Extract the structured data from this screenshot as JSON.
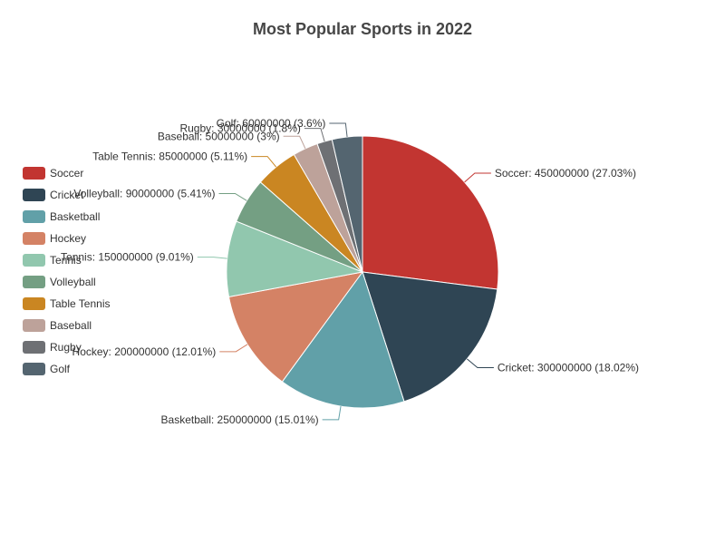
{
  "chart_data": {
    "type": "pie",
    "title": "Most Popular Sports in 2022",
    "slices": [
      {
        "name": "Soccer",
        "value": 450000000,
        "percent": "27.03%",
        "color": "#c23531"
      },
      {
        "name": "Cricket",
        "value": 300000000,
        "percent": "18.02%",
        "color": "#2f4554"
      },
      {
        "name": "Basketball",
        "value": 250000000,
        "percent": "15.01%",
        "color": "#61a0a8"
      },
      {
        "name": "Hockey",
        "value": 200000000,
        "percent": "12.01%",
        "color": "#d48265"
      },
      {
        "name": "Tennis",
        "value": 150000000,
        "percent": "9.01%",
        "color": "#91c7ae"
      },
      {
        "name": "Volleyball",
        "value": 90000000,
        "percent": "5.41%",
        "color": "#749f83"
      },
      {
        "name": "Table Tennis",
        "value": 85000000,
        "percent": "5.11%",
        "color": "#ca8622"
      },
      {
        "name": "Baseball",
        "value": 50000000,
        "percent": "3%",
        "color": "#bda29a"
      },
      {
        "name": "Rugby",
        "value": 30000000,
        "percent": "1.8%",
        "color": "#6e7074"
      },
      {
        "name": "Golf",
        "value": 60000000,
        "percent": "3.6%",
        "color": "#546570"
      }
    ],
    "legend_position": "left",
    "start_angle_deg": 90,
    "direction": "clockwise"
  }
}
